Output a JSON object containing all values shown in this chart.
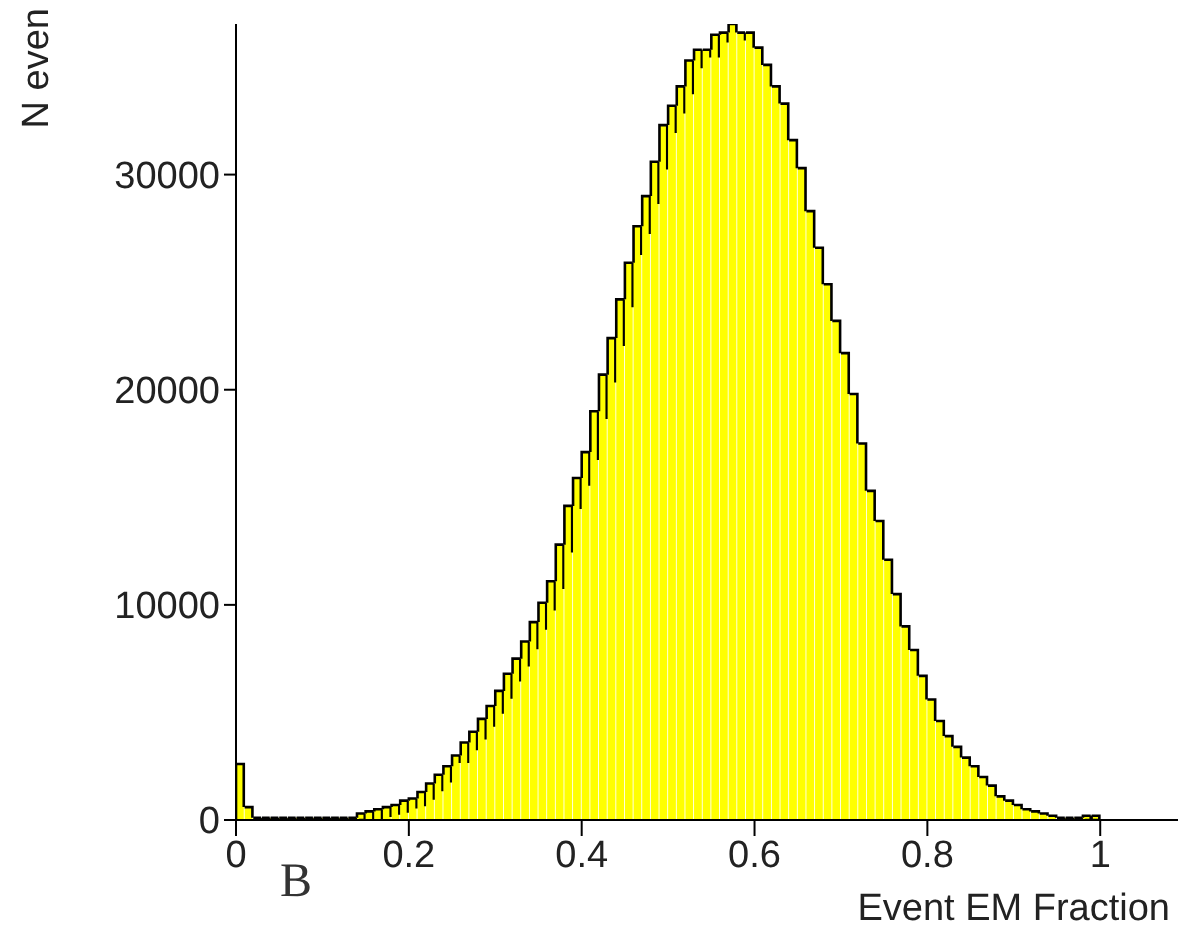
{
  "chart_data": {
    "type": "histogram",
    "xlabel": "Event EM Fraction",
    "ylabel": "N even",
    "annotations": [
      "B"
    ],
    "color": "#ffff00",
    "bins": [
      0,
      0.01,
      0.02,
      0.03,
      0.04,
      0.05,
      0.06,
      0.07,
      0.08,
      0.09,
      0.1,
      0.11,
      0.12,
      0.13,
      0.14,
      0.15,
      0.16,
      0.17,
      0.18,
      0.19,
      0.2,
      0.21,
      0.22,
      0.23,
      0.24,
      0.25,
      0.26,
      0.27,
      0.28,
      0.29,
      0.3,
      0.31,
      0.32,
      0.33,
      0.34,
      0.35,
      0.36,
      0.37,
      0.38,
      0.39,
      0.4,
      0.41,
      0.42,
      0.43,
      0.44,
      0.45,
      0.46,
      0.47,
      0.48,
      0.49,
      0.5,
      0.51,
      0.52,
      0.53,
      0.54,
      0.55,
      0.56,
      0.57,
      0.58,
      0.59,
      0.6,
      0.61,
      0.62,
      0.63,
      0.64,
      0.65,
      0.66,
      0.67,
      0.68,
      0.69,
      0.7,
      0.71,
      0.72,
      0.73,
      0.74,
      0.75,
      0.76,
      0.77,
      0.78,
      0.79,
      0.8,
      0.81,
      0.82,
      0.83,
      0.84,
      0.85,
      0.86,
      0.87,
      0.88,
      0.89,
      0.9,
      0.91,
      0.92,
      0.93,
      0.94,
      0.95,
      0.96,
      0.97,
      0.98,
      0.99,
      1
    ],
    "values": [
      2600,
      600,
      100,
      100,
      100,
      100,
      100,
      100,
      100,
      100,
      100,
      100,
      100,
      100,
      300,
      400,
      500,
      600,
      700,
      900,
      1000,
      1300,
      1700,
      2100,
      2500,
      3000,
      3600,
      4100,
      4700,
      5300,
      6000,
      6800,
      7500,
      8300,
      9200,
      10100,
      11100,
      12800,
      14600,
      15900,
      17100,
      19000,
      20700,
      22400,
      24200,
      25900,
      27600,
      29000,
      30600,
      32300,
      33200,
      34100,
      35300,
      35800,
      35800,
      36500,
      36600,
      37000,
      36600,
      36600,
      35900,
      35100,
      34100,
      33300,
      31600,
      30300,
      28300,
      26600,
      24900,
      23200,
      21700,
      19800,
      17500,
      15300,
      13900,
      12100,
      10500,
      9000,
      7900,
      6700,
      5600,
      4600,
      3900,
      3400,
      2900,
      2500,
      2000,
      1600,
      1100,
      900,
      700,
      500,
      400,
      300,
      200,
      100,
      100,
      100,
      200,
      200
    ],
    "xlim": [
      0,
      1.09
    ],
    "xticks": [
      0,
      0.2,
      0.4,
      0.6,
      0.8,
      1
    ],
    "ylim": [
      0,
      37000
    ],
    "yticks": [
      0,
      10000,
      20000,
      30000
    ],
    "grid": false,
    "legend": false
  }
}
